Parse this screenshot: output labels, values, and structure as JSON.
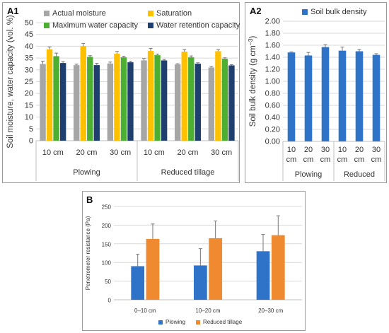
{
  "chart_data": [
    {
      "panel_label": "A1",
      "type": "bar",
      "title": "",
      "ylabel": "Soil moisture, water capacity (vol. %)",
      "ylim": [
        0,
        50
      ],
      "yticks": [
        "0",
        "5",
        "10",
        "15",
        "20",
        "25",
        "30",
        "35",
        "40",
        "45",
        "50"
      ],
      "grid": true,
      "legend_position": "top",
      "categories": [
        "10 cm",
        "20 cm",
        "30 cm",
        "10 cm",
        "20 cm",
        "30 cm"
      ],
      "groups": [
        "Plowing",
        "Reduced tillage"
      ],
      "series": [
        {
          "name": "Actual moisture",
          "color": "#a6a6a6",
          "values": [
            32.5,
            32.0,
            32.7,
            34.0,
            32.3,
            31.0
          ],
          "errors": [
            1.2,
            0.4,
            0.6,
            0.8,
            0.3,
            0.4
          ]
        },
        {
          "name": "Saturation",
          "color": "#ffc000",
          "values": [
            38.7,
            40.0,
            36.8,
            38.0,
            37.7,
            37.9
          ],
          "errors": [
            1.0,
            1.2,
            1.0,
            1.1,
            0.9,
            0.7
          ]
        },
        {
          "name": "Maximum water capacity",
          "color": "#4caf32",
          "values": [
            35.8,
            35.5,
            35.3,
            36.2,
            35.3,
            34.7
          ],
          "errors": [
            1.3,
            0.5,
            0.5,
            0.5,
            0.6,
            0.4
          ]
        },
        {
          "name": "Water retention capacity",
          "color": "#1f3f6e",
          "values": [
            32.9,
            32.0,
            33.2,
            34.0,
            32.6,
            31.9
          ],
          "errors": [
            0.6,
            0.8,
            0.4,
            0.4,
            0.4,
            0.3
          ]
        }
      ]
    },
    {
      "panel_label": "A2",
      "type": "bar",
      "title": "",
      "ylabel": "Soil bulk density (g cm",
      "ylabel_sup": "−3",
      "ylabel_end": ")",
      "ylim": [
        0,
        2.0
      ],
      "yticks": [
        "0.00",
        "0.20",
        "0.40",
        "0.60",
        "0.80",
        "1.00",
        "1.20",
        "1.40",
        "1.60",
        "1.80",
        "2.00"
      ],
      "grid": true,
      "legend_position": "top",
      "categories": [
        [
          "10",
          "cm"
        ],
        [
          "20",
          "cm"
        ],
        [
          "30",
          "cm"
        ],
        [
          "10",
          "cm"
        ],
        [
          "20",
          "cm"
        ],
        [
          "30",
          "cm"
        ]
      ],
      "groups": [
        "Plowing",
        "Reduced"
      ],
      "series": [
        {
          "name": "Soil bulk density",
          "color": "#2f73c8",
          "values": [
            1.48,
            1.43,
            1.57,
            1.51,
            1.5,
            1.44
          ],
          "errors": [
            0.01,
            0.05,
            0.04,
            0.06,
            0.03,
            0.02
          ]
        }
      ]
    },
    {
      "panel_label": "B",
      "type": "bar",
      "title": "",
      "ylabel": "Penetrometer resistance (Pa)",
      "ylim": [
        0,
        250
      ],
      "yticks": [
        "0",
        "50",
        "100",
        "150",
        "200",
        "250"
      ],
      "grid": true,
      "legend_position": "bottom",
      "categories": [
        "0–10 cm",
        "10–20 cm",
        "20–30 cm"
      ],
      "series": [
        {
          "name": "Plowing",
          "color": "#2f73c8",
          "values": [
            90,
            92,
            130
          ],
          "errors": [
            32,
            45,
            45
          ]
        },
        {
          "name": "Reduced tillage",
          "color": "#f08a30",
          "values": [
            163,
            165,
            173
          ],
          "errors": [
            40,
            46,
            52
          ]
        }
      ]
    }
  ]
}
